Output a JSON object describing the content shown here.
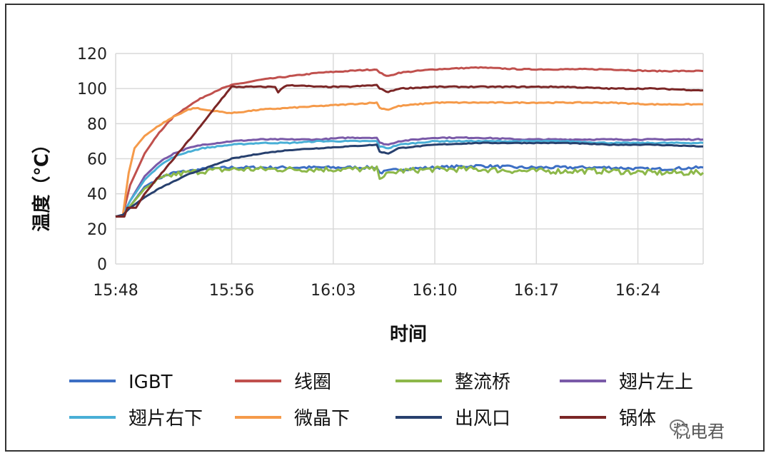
{
  "chart_data": {
    "type": "line",
    "xlabel": "时间",
    "ylabel": "温度（℃）",
    "x_ticks": [
      "15:48",
      "15:56",
      "16:03",
      "16:10",
      "16:17",
      "16:24"
    ],
    "x_tick_minutes": [
      0,
      8,
      15,
      22,
      29,
      36
    ],
    "x_range_minutes": [
      0,
      40.5
    ],
    "ylim": [
      0,
      120
    ],
    "y_ticks": [
      0,
      20,
      40,
      60,
      80,
      100,
      120
    ],
    "grid": true,
    "legend_position": "bottom",
    "series": [
      {
        "name": "IGBT",
        "color": "#3d6fc4",
        "noise": 0.8,
        "x": [
          0,
          0.5,
          1,
          2,
          3,
          4,
          5,
          6,
          8,
          10,
          12,
          14,
          16,
          18,
          18.2,
          18.8,
          19.5,
          22,
          25,
          28,
          31,
          34,
          37,
          40.5
        ],
        "y": [
          27,
          28,
          33,
          44,
          49,
          52,
          53,
          54,
          55,
          55,
          55,
          55,
          55,
          55,
          52,
          53,
          54,
          55,
          56,
          55,
          55,
          55,
          54,
          55
        ]
      },
      {
        "name": "线圈",
        "color": "#c0504d",
        "noise": 0.3,
        "x": [
          0,
          0.5,
          1,
          2,
          3,
          4,
          5,
          6,
          7,
          8,
          10,
          12,
          14,
          16,
          18,
          18.2,
          18.8,
          19.5,
          22,
          25,
          28,
          31,
          34,
          37,
          40.5
        ],
        "y": [
          27,
          28,
          45,
          63,
          75,
          84,
          90,
          95,
          99,
          102,
          105,
          107,
          109,
          110,
          111,
          109,
          107,
          109,
          111,
          112,
          111,
          111,
          111,
          110,
          110
        ]
      },
      {
        "name": "整流桥",
        "color": "#8db84a",
        "noise": 1.6,
        "x": [
          0,
          0.5,
          1,
          2,
          3,
          4,
          5,
          6,
          8,
          10,
          12,
          14,
          16,
          18,
          18.2,
          18.8,
          19.5,
          22,
          25,
          28,
          31,
          34,
          37,
          40.5
        ],
        "y": [
          27,
          28,
          33,
          43,
          48,
          51,
          52,
          53,
          54,
          54,
          54,
          54,
          54,
          54,
          50,
          51,
          53,
          54,
          54,
          53,
          53,
          53,
          52,
          52
        ]
      },
      {
        "name": "翅片左上",
        "color": "#7a5aa8",
        "noise": 0.3,
        "x": [
          0,
          0.5,
          1,
          2,
          3,
          4,
          5,
          6,
          7,
          8,
          10,
          12,
          14,
          16,
          18,
          18.2,
          18.8,
          19.5,
          22,
          25,
          28,
          31,
          34,
          37,
          40.5
        ],
        "y": [
          27,
          28,
          36,
          50,
          58,
          63,
          66,
          68,
          69,
          70,
          71,
          71,
          71,
          72,
          72,
          69,
          68,
          70,
          72,
          72,
          71,
          71,
          71,
          71,
          71
        ]
      },
      {
        "name": "翅片右下",
        "color": "#49afd6",
        "noise": 0.3,
        "x": [
          0,
          0.5,
          1,
          2,
          3,
          4,
          5,
          6,
          7,
          8,
          10,
          12,
          14,
          16,
          18,
          18.2,
          18.8,
          19.5,
          22,
          25,
          28,
          31,
          34,
          37,
          40.5
        ],
        "y": [
          27,
          28,
          36,
          48,
          56,
          61,
          64,
          66,
          67,
          68,
          69,
          69,
          70,
          70,
          70,
          67,
          66,
          68,
          70,
          70,
          70,
          70,
          69,
          69,
          69
        ]
      },
      {
        "name": "微晶下",
        "color": "#f59a4a",
        "noise": 0.3,
        "x": [
          0,
          0.5,
          0.9,
          1.3,
          2,
          3,
          4,
          5,
          5.5,
          6,
          7,
          8,
          9,
          10,
          12,
          14,
          16,
          18,
          18.2,
          18.8,
          19.5,
          22,
          25,
          28,
          31,
          34,
          37,
          40.5
        ],
        "y": [
          27,
          28,
          52,
          66,
          73,
          79,
          84,
          88,
          89,
          88,
          87,
          86,
          87,
          88,
          89,
          90,
          91,
          92,
          89,
          88,
          90,
          92,
          92,
          92,
          92,
          92,
          91,
          91
        ]
      },
      {
        "name": "出风口",
        "color": "#27406e",
        "noise": 0.2,
        "x": [
          0,
          0.5,
          1,
          2,
          3,
          4,
          5,
          6,
          7,
          8,
          10,
          12,
          14,
          16,
          18,
          18.2,
          18.8,
          19.5,
          22,
          25,
          28,
          31,
          34,
          37,
          40.5
        ],
        "y": [
          27,
          28,
          32,
          38,
          43,
          47,
          51,
          54,
          57,
          60,
          63,
          65,
          66,
          67,
          68,
          64,
          63,
          66,
          68,
          69,
          69,
          69,
          68,
          68,
          67
        ]
      },
      {
        "name": "锅体",
        "color": "#7b2626",
        "noise": 0.3,
        "x": [
          0,
          0.6,
          0.8,
          1.4,
          2,
          3,
          4,
          5,
          6,
          7,
          8,
          10,
          11,
          11.2,
          11.6,
          12,
          14,
          16,
          18,
          18.2,
          18.8,
          19.5,
          22,
          25,
          28,
          31,
          34,
          37,
          40.5
        ],
        "y": [
          27,
          27,
          32,
          32,
          40,
          50,
          60,
          70,
          80,
          91,
          101,
          101,
          101,
          98,
          101,
          102,
          101,
          101,
          102,
          100,
          98,
          100,
          101,
          101,
          101,
          101,
          100,
          100,
          99
        ]
      }
    ]
  },
  "watermark": {
    "text": "机电君",
    "icon": "wechat-icon"
  }
}
